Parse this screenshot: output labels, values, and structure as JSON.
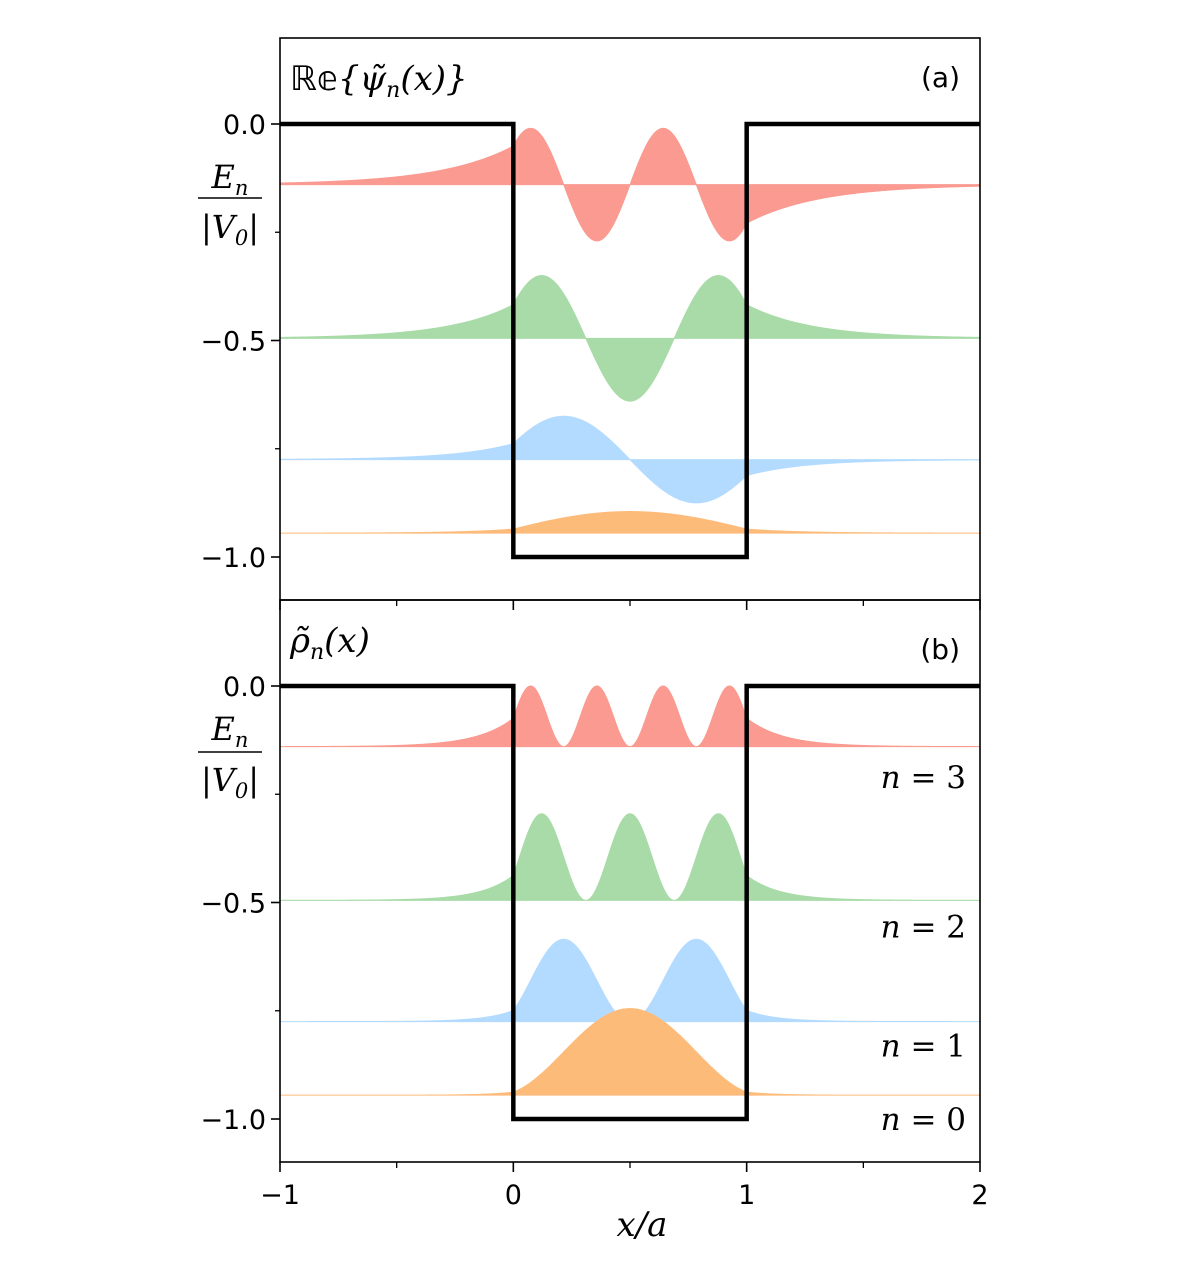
{
  "figure": {
    "xlabel": "x/a",
    "x_ticks": [
      "−1",
      "0",
      "1",
      "2"
    ],
    "x_tick_values": [
      -1,
      0,
      1,
      2
    ]
  },
  "chart_data": [
    {
      "type": "area",
      "panel": "(a)",
      "title": "𝕖{ψ̃ₙ(x)}",
      "title_prefix": "ℝ𝕖",
      "title_body": "{ψ̃",
      "title_sub": "n",
      "title_tail": "(x)}",
      "ylabel_num": "E",
      "ylabel_num_sub": "n",
      "ylabel_den": "|V",
      "ylabel_den_sub": "0",
      "ylabel_den_tail": "|",
      "xlim": [
        -1,
        2
      ],
      "ylim": [
        -1.1,
        0.2
      ],
      "y_ticks": [
        "0.0",
        "−0.5",
        "−1.0"
      ],
      "y_tick_values": [
        0.0,
        -0.5,
        -1.0
      ],
      "y_minor_ticks": [
        -0.25,
        -0.75
      ],
      "grid": false,
      "potential": {
        "x": [
          -1,
          0,
          0,
          1,
          1,
          2
        ],
        "y": [
          0,
          0,
          -1,
          -1,
          0,
          0
        ]
      },
      "series": [
        {
          "n": 3,
          "energy": -0.14,
          "amplitude": 0.13,
          "color": "#fa9a90"
        },
        {
          "n": 2,
          "energy": -0.495,
          "amplitude": 0.145,
          "color": "#a8dba8"
        },
        {
          "n": 1,
          "energy": -0.775,
          "amplitude": 0.1,
          "color": "#b3dbff"
        },
        {
          "n": 0,
          "energy": -0.945,
          "amplitude": 0.05,
          "color": "#fdbb7a"
        }
      ]
    },
    {
      "type": "area",
      "panel": "(b)",
      "title_prefix": "",
      "title_body": "ρ̃",
      "title_sub": "n",
      "title_tail": "(x)",
      "ylabel_num": "E",
      "ylabel_num_sub": "n",
      "ylabel_den": "|V",
      "ylabel_den_sub": "0",
      "ylabel_den_tail": "|",
      "xlim": [
        -1,
        2
      ],
      "ylim": [
        -1.1,
        0.2
      ],
      "y_ticks": [
        "0.0",
        "−0.5",
        "−1.0"
      ],
      "y_tick_values": [
        0.0,
        -0.5,
        -1.0
      ],
      "y_minor_ticks": [
        -0.25,
        -0.75
      ],
      "grid": false,
      "potential": {
        "x": [
          -1,
          0,
          0,
          1,
          1,
          2
        ],
        "y": [
          0,
          0,
          -1,
          -1,
          0,
          0
        ]
      },
      "series": [
        {
          "n": 3,
          "energy": -0.14,
          "amplitude": 0.14,
          "color": "#fa9a90"
        },
        {
          "n": 2,
          "energy": -0.495,
          "amplitude": 0.2,
          "color": "#a8dba8"
        },
        {
          "n": 1,
          "energy": -0.775,
          "amplitude": 0.19,
          "color": "#b3dbff"
        },
        {
          "n": 0,
          "energy": -0.945,
          "amplitude": 0.2,
          "color": "#fdbb7a"
        }
      ],
      "level_labels": [
        {
          "text": "n = 3",
          "n_part": "n",
          "eq_part": " = 3",
          "y": -0.21
        },
        {
          "text": "n = 2",
          "n_part": "n",
          "eq_part": " = 2",
          "y": -0.555
        },
        {
          "text": "n = 1",
          "n_part": "n",
          "eq_part": " = 1",
          "y": -0.83
        },
        {
          "text": "n = 0",
          "n_part": "n",
          "eq_part": " = 0",
          "y": -1.0
        }
      ]
    }
  ]
}
